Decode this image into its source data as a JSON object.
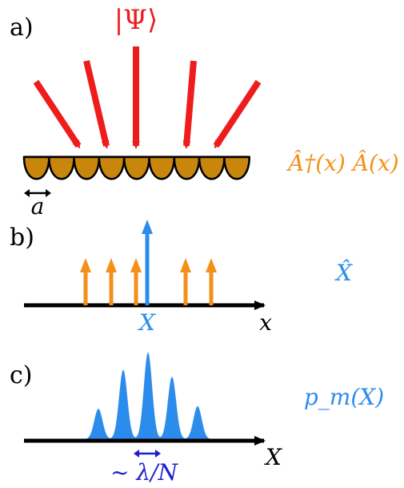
{
  "panels": {
    "a": {
      "label": "a)",
      "state": "|Ψ⟩",
      "operator": "Â†(x) Â(x)",
      "spacing": "a",
      "num_detectors": 9,
      "num_arrows": 5
    },
    "b": {
      "label": "b)",
      "operator": "X̂",
      "axis_label": "x",
      "marker_label": "X",
      "num_orange_arrows": 5
    },
    "c": {
      "label": "c)",
      "distribution": "p_m(X)",
      "axis_label": "X",
      "width_label": "~ λ/N",
      "peak_heights": [
        0.35,
        0.8,
        1.0,
        0.72,
        0.38
      ]
    }
  },
  "colors": {
    "red": "#ee1c1c",
    "orange": "#f39019",
    "detector": "#c8860c",
    "blue": "#2c8ceb",
    "dark_blue": "#1f1fcf",
    "black": "#000000"
  }
}
